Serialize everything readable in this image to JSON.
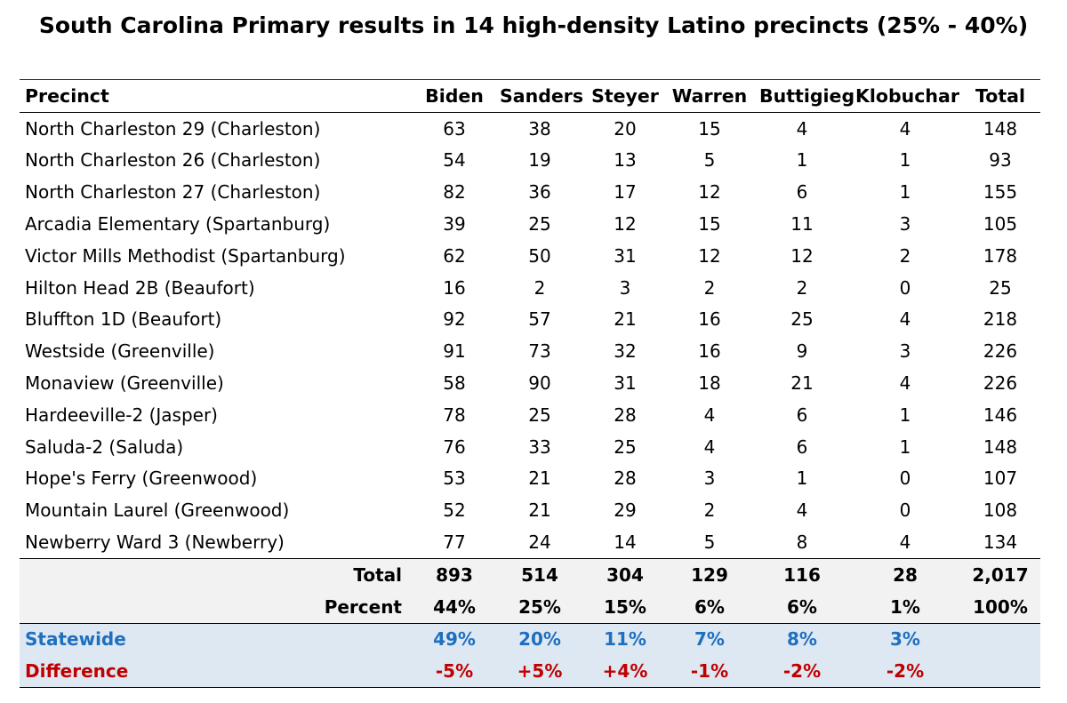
{
  "chart_data": {
    "type": "table",
    "title": "South Carolina Primary results in 14 high-density Latino precincts (25% - 40%)",
    "columns": [
      "Precinct",
      "Biden",
      "Sanders",
      "Steyer",
      "Warren",
      "Buttigieg",
      "Klobuchar",
      "Total"
    ],
    "rows": [
      {
        "precinct": "North Charleston 29 (Charleston)",
        "values": [
          "63",
          "38",
          "20",
          "15",
          "4",
          "4",
          "148"
        ]
      },
      {
        "precinct": "North Charleston 26 (Charleston)",
        "values": [
          "54",
          "19",
          "13",
          "5",
          "1",
          "1",
          "93"
        ]
      },
      {
        "precinct": "North Charleston 27 (Charleston)",
        "values": [
          "82",
          "36",
          "17",
          "12",
          "6",
          "1",
          "155"
        ]
      },
      {
        "precinct": "Arcadia Elementary (Spartanburg)",
        "values": [
          "39",
          "25",
          "12",
          "15",
          "11",
          "3",
          "105"
        ]
      },
      {
        "precinct": "Victor Mills Methodist (Spartanburg)",
        "values": [
          "62",
          "50",
          "31",
          "12",
          "12",
          "2",
          "178"
        ]
      },
      {
        "precinct": "Hilton Head 2B (Beaufort)",
        "values": [
          "16",
          "2",
          "3",
          "2",
          "2",
          "0",
          "25"
        ]
      },
      {
        "precinct": "Bluffton 1D (Beaufort)",
        "values": [
          "92",
          "57",
          "21",
          "16",
          "25",
          "4",
          "218"
        ]
      },
      {
        "precinct": "Westside (Greenville)",
        "values": [
          "91",
          "73",
          "32",
          "16",
          "9",
          "3",
          "226"
        ]
      },
      {
        "precinct": "Monaview (Greenville)",
        "values": [
          "58",
          "90",
          "31",
          "18",
          "21",
          "4",
          "226"
        ]
      },
      {
        "precinct": "Hardeeville-2 (Jasper)",
        "values": [
          "78",
          "25",
          "28",
          "4",
          "6",
          "1",
          "146"
        ]
      },
      {
        "precinct": "Saluda-2 (Saluda)",
        "values": [
          "76",
          "33",
          "25",
          "4",
          "6",
          "1",
          "148"
        ]
      },
      {
        "precinct": "Hope's Ferry (Greenwood)",
        "values": [
          "53",
          "21",
          "28",
          "3",
          "1",
          "0",
          "107"
        ]
      },
      {
        "precinct": "Mountain Laurel (Greenwood)",
        "values": [
          "52",
          "21",
          "29",
          "2",
          "4",
          "0",
          "108"
        ]
      },
      {
        "precinct": "Newberry Ward 3 (Newberry)",
        "values": [
          "77",
          "24",
          "14",
          "5",
          "8",
          "4",
          "134"
        ]
      }
    ],
    "total": {
      "label": "Total",
      "values": [
        "893",
        "514",
        "304",
        "129",
        "116",
        "28",
        "2,017"
      ]
    },
    "percent": {
      "label": "Percent",
      "values": [
        "44%",
        "25%",
        "15%",
        "6%",
        "6%",
        "1%",
        "100%"
      ]
    },
    "statewide": {
      "label": "Statewide",
      "values": [
        "49%",
        "20%",
        "11%",
        "7%",
        "8%",
        "3%",
        ""
      ]
    },
    "difference": {
      "label": "Difference",
      "values": [
        "-5%",
        "+5%",
        "+4%",
        "-1%",
        "-2%",
        "-2%",
        ""
      ]
    }
  },
  "colors": {
    "statewide_text": "#1f6fbf",
    "difference_text": "#c00000",
    "summary_background": "#f2f2f2",
    "statewide_background": "#dde8f2"
  }
}
